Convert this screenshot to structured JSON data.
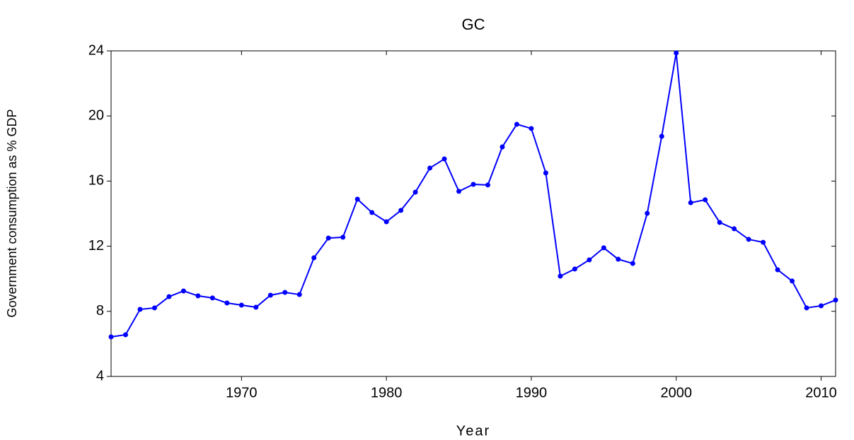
{
  "chart_data": {
    "type": "line",
    "title": "GC",
    "x_label": "Year",
    "y_label": "Government consumption as % GDP",
    "x": [
      1961,
      1962,
      1963,
      1964,
      1965,
      1966,
      1967,
      1968,
      1969,
      1970,
      1971,
      1972,
      1973,
      1974,
      1975,
      1976,
      1977,
      1978,
      1979,
      1980,
      1981,
      1982,
      1983,
      1984,
      1985,
      1986,
      1987,
      1988,
      1989,
      1990,
      1991,
      1992,
      1993,
      1994,
      1995,
      1996,
      1997,
      1998,
      1999,
      2000,
      2001,
      2002,
      2003,
      2004,
      2005,
      2006,
      2007,
      2008,
      2009,
      2010,
      2011
    ],
    "series": [
      {
        "name": "GC",
        "color": "#0000ff",
        "values": [
          6.43,
          6.56,
          8.12,
          8.21,
          8.9,
          9.25,
          8.95,
          8.82,
          8.51,
          8.38,
          8.25,
          8.99,
          9.16,
          9.03,
          11.29,
          12.5,
          12.55,
          14.89,
          14.07,
          13.5,
          14.2,
          15.32,
          16.8,
          17.36,
          15.37,
          15.8,
          15.76,
          18.1,
          19.49,
          19.23,
          16.5,
          10.16,
          10.6,
          11.16,
          11.9,
          11.2,
          10.94,
          14.02,
          18.75,
          23.87,
          14.67,
          14.85,
          13.46,
          13.07,
          12.42,
          12.24,
          10.55,
          9.86,
          8.21,
          8.34,
          8.69
        ]
      }
    ],
    "xlim": [
      1961,
      2011
    ],
    "xticks": [
      1970,
      1980,
      1990,
      2000,
      2010
    ],
    "ylim": [
      4,
      24
    ],
    "yticks": [
      4,
      8,
      12,
      16,
      20,
      24
    ],
    "grid": false,
    "markers": true
  }
}
